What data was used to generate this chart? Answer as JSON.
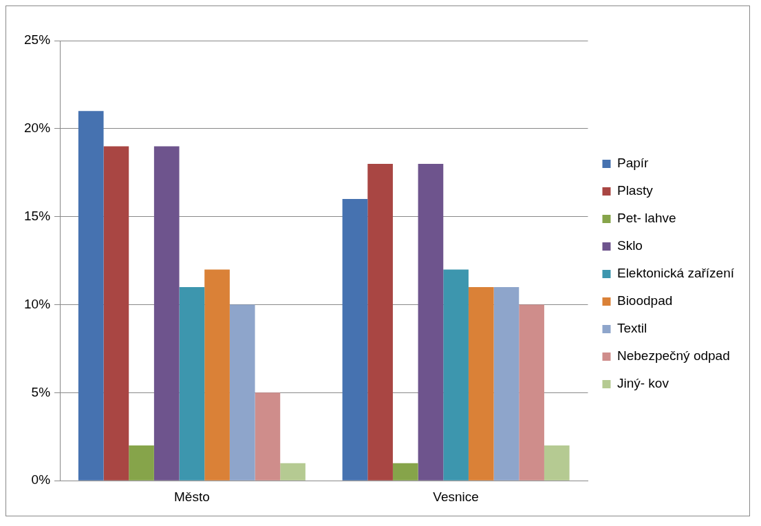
{
  "chart_data": {
    "type": "bar",
    "categories": [
      "Město",
      "Vesnice"
    ],
    "series": [
      {
        "name": "Papír",
        "color": "#4672b0",
        "values": [
          21,
          16
        ]
      },
      {
        "name": "Plasty",
        "color": "#a94643",
        "values": [
          19,
          18
        ]
      },
      {
        "name": "Pet- lahve",
        "color": "#86a44a",
        "values": [
          2,
          1
        ]
      },
      {
        "name": "Sklo",
        "color": "#6e548d",
        "values": [
          19,
          18
        ]
      },
      {
        "name": "Elektonická zařízení",
        "color": "#3d96ae",
        "values": [
          11,
          12
        ]
      },
      {
        "name": "Bioodpad",
        "color": "#da8137",
        "values": [
          12,
          11
        ]
      },
      {
        "name": "Textil",
        "color": "#8ea5cb",
        "values": [
          10,
          11
        ]
      },
      {
        "name": "Nebezpečný odpad",
        "color": "#cf8d8b",
        "values": [
          5,
          10
        ]
      },
      {
        "name": "Jiný- kov",
        "color": "#b5ca92",
        "values": [
          1,
          2
        ]
      }
    ],
    "ylim": [
      0,
      25
    ],
    "yticks": [
      {
        "value": 0,
        "label": "0%"
      },
      {
        "value": 5,
        "label": "5%"
      },
      {
        "value": 10,
        "label": "10%"
      },
      {
        "value": 15,
        "label": "15%"
      },
      {
        "value": 20,
        "label": "20%"
      },
      {
        "value": 25,
        "label": "25%"
      }
    ],
    "grid": "y",
    "legend": "right"
  }
}
